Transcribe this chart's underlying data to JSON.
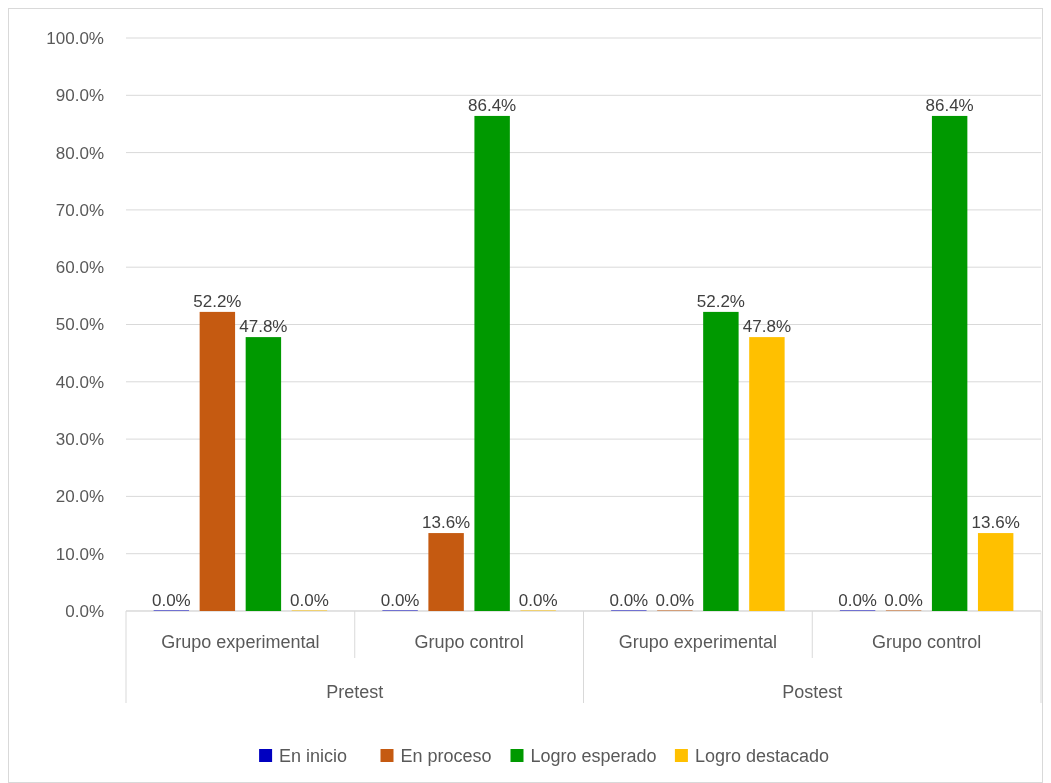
{
  "chart_data": {
    "type": "bar",
    "categories": [
      "Grupo experimental",
      "Grupo control",
      "Grupo experimental",
      "Grupo control"
    ],
    "annotations": [
      "Pretest",
      "Postest"
    ],
    "series": [
      {
        "name": "En inicio",
        "color": "#0000c0",
        "values": [
          0,
          0,
          0,
          0
        ],
        "value_labels": [
          "0.0%",
          "0.0%",
          "0.0%",
          "0.0%"
        ]
      },
      {
        "name": "En proceso",
        "color": "#c55a11",
        "values": [
          52.2,
          13.6,
          0,
          0
        ],
        "value_labels": [
          "52.2%",
          "13.6%",
          "0.0%",
          "0.0%"
        ]
      },
      {
        "name": "Logro esperado",
        "color": "#009900",
        "values": [
          47.8,
          86.4,
          52.2,
          86.4
        ],
        "value_labels": [
          "47.8%",
          "86.4%",
          "52.2%",
          "86.4%"
        ]
      },
      {
        "name": "Logro destacado",
        "color": "#ffc000",
        "values": [
          0,
          0,
          47.8,
          13.6
        ],
        "value_labels": [
          "0.0%",
          "0.0%",
          "47.8%",
          "13.6%"
        ]
      }
    ],
    "ylim": [
      0,
      100
    ],
    "yticks": [
      {
        "value": 0,
        "label": "0.0%"
      },
      {
        "value": 10,
        "label": "10.0%"
      },
      {
        "value": 20,
        "label": "20.0%"
      },
      {
        "value": 30,
        "label": "30.0%"
      },
      {
        "value": 40,
        "label": "40.0%"
      },
      {
        "value": 50,
        "label": "50.0%"
      },
      {
        "value": 60,
        "label": "60.0%"
      },
      {
        "value": 70,
        "label": "70.0%"
      },
      {
        "value": 80,
        "label": "80.0%"
      },
      {
        "value": 90,
        "label": "90.0%"
      },
      {
        "value": 100,
        "label": "100.0%"
      }
    ],
    "grid": "y",
    "legend": "bottom"
  }
}
